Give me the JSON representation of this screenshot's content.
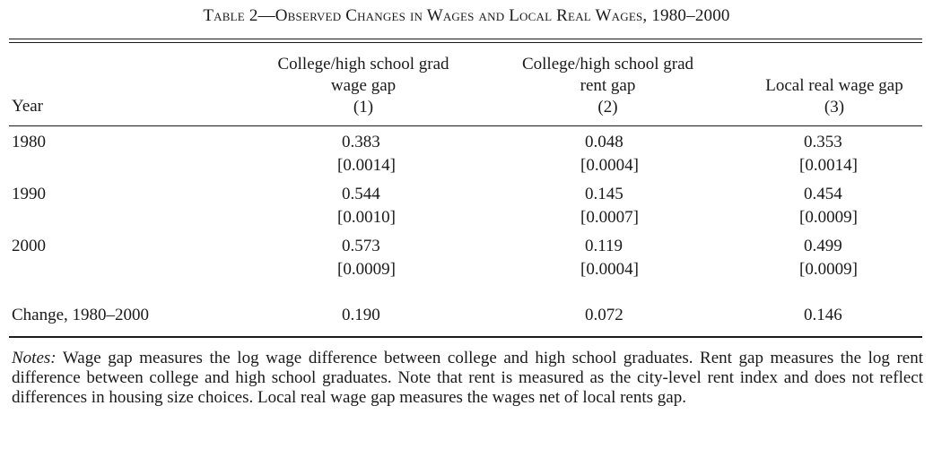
{
  "table": {
    "title_label": "Table 2",
    "title_dash": "—",
    "title_text": "Observed Changes in Wages and Local Real Wages, 1980–2000",
    "columns": [
      {
        "line1": "College/high school grad",
        "line2": "wage gap",
        "num": "(1)"
      },
      {
        "line1": "College/high school grad",
        "line2": "rent gap",
        "num": "(2)"
      },
      {
        "line1": "",
        "line2": "Local real wage gap",
        "num": "(3)"
      }
    ],
    "year_header": "Year",
    "rows": [
      {
        "year": "1980",
        "values": [
          "0.383",
          "0.048",
          "0.353"
        ],
        "se": [
          "[0.0014]",
          "[0.0004]",
          "[0.0014]"
        ]
      },
      {
        "year": "1990",
        "values": [
          "0.544",
          "0.145",
          "0.454"
        ],
        "se": [
          "[0.0010]",
          "[0.0007]",
          "[0.0009]"
        ]
      },
      {
        "year": "2000",
        "values": [
          "0.573",
          "0.119",
          "0.499"
        ],
        "se": [
          "[0.0009]",
          "[0.0004]",
          "[0.0009]"
        ]
      }
    ],
    "change_row": {
      "label": "Change, 1980–2000",
      "values": [
        "0.190",
        "0.072",
        "0.146"
      ]
    },
    "notes_label": "Notes:",
    "notes_text": "Wage gap measures the log wage difference between college and high school graduates. Rent gap measures the log rent difference between college and high school graduates. Note that rent is measured as the city-level rent index and does not reflect differences in housing size choices. Local real wage gap measures the wages net of local rents gap."
  }
}
